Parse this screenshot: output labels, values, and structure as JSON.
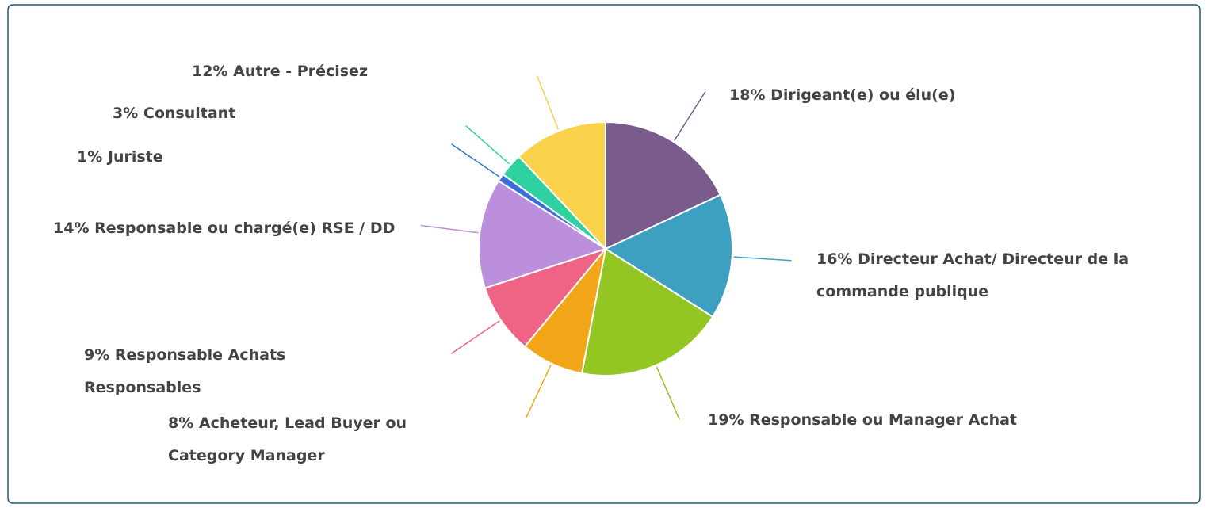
{
  "chart_data": {
    "type": "pie",
    "categories": [
      "Dirigeant(e) ou élu(e)",
      "Directeur Achat/ Directeur de la commande publique",
      "Responsable ou Manager Achat",
      "Acheteur, Lead Buyer ou Category Manager",
      "Responsable Achats Responsables",
      "Responsable ou chargé(e) RSE / DD",
      "Juriste",
      "Consultant",
      "Autre - Précisez"
    ],
    "values": [
      18,
      16,
      19,
      8,
      9,
      14,
      1,
      3,
      12
    ],
    "value_labels": [
      "18%",
      "16%",
      "19%",
      "8%",
      "9%",
      "14%",
      "1%",
      "3%",
      "12%"
    ],
    "colors": [
      "#7a5c8c",
      "#3ea0c0",
      "#93c523",
      "#f2a516",
      "#ef6384",
      "#bb8fdb",
      "#3a6fd8",
      "#2fd1a0",
      "#f9d14a"
    ]
  }
}
